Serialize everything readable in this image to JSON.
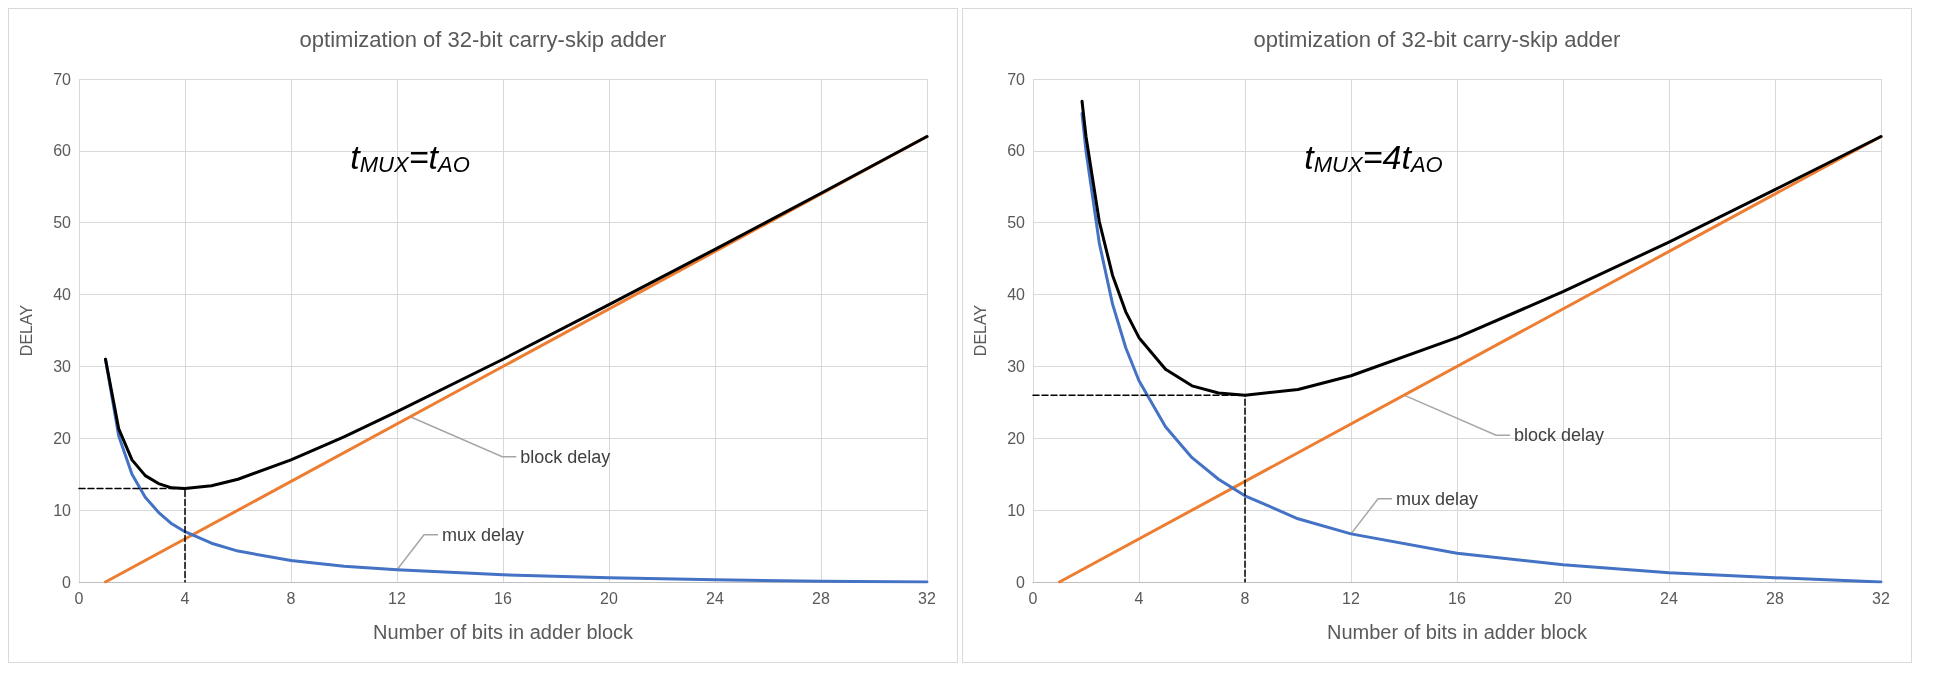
{
  "chart_data": [
    {
      "type": "line",
      "title": "optimization of 32-bit carry-skip adder",
      "xlabel": "Number of bits in adder block",
      "ylabel": "DELAY",
      "xlim": [
        0,
        32
      ],
      "xticks": [
        0,
        4,
        8,
        12,
        16,
        20,
        24,
        28,
        32
      ],
      "ylim": [
        0,
        70
      ],
      "yticks": [
        0,
        10,
        20,
        30,
        40,
        50,
        60,
        70
      ],
      "grid": true,
      "marker": "none",
      "annotations": [
        "t$_{MUX}$=t$_{AO}$",
        {
          "text": "block delay",
          "x": 12.5,
          "y": 23
        },
        {
          "text": "mux delay",
          "x": 12,
          "y": 1.7
        }
      ],
      "series": [
        {
          "color": "#ed7d31",
          "x": [
            1,
            32
          ],
          "values": [
            0,
            62
          ]
        },
        {
          "color": "#4472c4",
          "x": [
            1,
            1.5,
            2,
            2.5,
            3,
            3.5,
            4,
            5,
            6,
            8,
            10,
            12,
            16,
            20,
            24,
            28,
            32
          ],
          "values": [
            31,
            20.3,
            15,
            11.8,
            9.7,
            8.1,
            7,
            5.4,
            4.3,
            3,
            2.2,
            1.7,
            1,
            0.6,
            0.3,
            0.1,
            0
          ]
        },
        {
          "color": "#000000",
          "x": [
            1,
            1.5,
            2,
            2.5,
            3,
            3.5,
            4,
            5,
            6,
            8,
            10,
            12,
            16,
            20,
            24,
            28,
            32
          ],
          "values": [
            31,
            21.3,
            17,
            14.8,
            13.7,
            13.1,
            13,
            13.4,
            14.3,
            17,
            20.2,
            23.7,
            31,
            38.6,
            46.3,
            54.1,
            62
          ]
        },
        {
          "color": "#000000",
          "line_style": "dashed",
          "x": [
            0,
            4,
            4
          ],
          "values": [
            13,
            13,
            0
          ]
        }
      ]
    },
    {
      "type": "line",
      "title": "optimization of 32-bit carry-skip adder",
      "xlabel": "Number of bits in adder block",
      "ylabel": "DELAY",
      "xlim": [
        0,
        32
      ],
      "xticks": [
        0,
        4,
        8,
        12,
        16,
        20,
        24,
        28,
        32
      ],
      "ylim": [
        0,
        70
      ],
      "yticks": [
        0,
        10,
        20,
        30,
        40,
        50,
        60,
        70
      ],
      "grid": true,
      "marker": "none",
      "annotations": [
        "t$_{MUX}$=4t$_{AO}$",
        {
          "text": "block delay",
          "x": 14,
          "y": 26
        },
        {
          "text": "mux delay",
          "x": 12,
          "y": 6.7
        }
      ],
      "series": [
        {
          "color": "#ed7d31",
          "x": [
            1,
            32
          ],
          "values": [
            0,
            62
          ]
        },
        {
          "color": "#4472c4",
          "x": [
            1.85,
            2,
            2.5,
            3,
            3.5,
            4,
            5,
            6,
            7,
            8,
            10,
            12,
            16,
            20,
            24,
            28,
            32
          ],
          "values": [
            65.2,
            60,
            47.2,
            38.7,
            32.6,
            28,
            21.6,
            17.3,
            14.3,
            12,
            8.8,
            6.7,
            4,
            2.4,
            1.3,
            0.6,
            0
          ]
        },
        {
          "color": "#000000",
          "x": [
            1.85,
            2,
            2.5,
            3,
            3.5,
            4,
            5,
            6,
            7,
            8,
            10,
            12,
            16,
            20,
            24,
            28,
            32
          ],
          "values": [
            66.9,
            62,
            50.2,
            42.7,
            37.6,
            34,
            29.6,
            27.3,
            26.3,
            26,
            26.8,
            28.7,
            34,
            40.4,
            47.3,
            54.6,
            62
          ]
        },
        {
          "color": "#000000",
          "line_style": "dashed",
          "x": [
            0,
            8,
            8
          ],
          "values": [
            26,
            26,
            0
          ]
        }
      ]
    }
  ]
}
